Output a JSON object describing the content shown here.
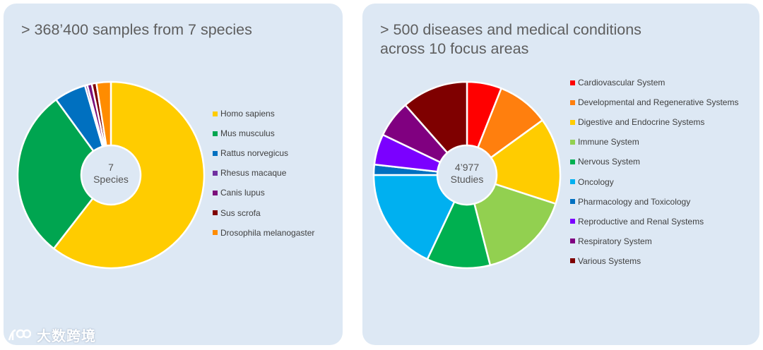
{
  "watermark": {
    "text": "大数跨境"
  },
  "chart_data": [
    {
      "type": "pie",
      "variant": "donut",
      "title": "> 368’400 samples from 7 species",
      "center_label": [
        "7",
        "Species"
      ],
      "categories": [
        "Homo sapiens",
        "Mus musculus",
        "Rattus norvegicus",
        "Rhesus macaque",
        "Canis lupus",
        "Sus scrofa",
        "Drosophila melanogaster"
      ],
      "values": [
        60.5,
        29.5,
        5.5,
        0.4,
        0.8,
        0.8,
        2.5
      ],
      "colors": [
        "#ffcc00",
        "#00a550",
        "#0070c0",
        "#7030a0",
        "#7b0f7b",
        "#7f0000",
        "#ff8c00"
      ],
      "start_angle_deg": 0,
      "legend_position": "right"
    },
    {
      "type": "pie",
      "variant": "donut",
      "title": "> 500 diseases and medical conditions across 10 focus areas",
      "title_lines": [
        "> 500 diseases and medical conditions",
        "across 10 focus areas"
      ],
      "center_label": [
        "4’977",
        "Studies"
      ],
      "categories": [
        "Cardiovascular System",
        "Developmental and Regenerative Systems",
        "Digestive and Endocrine Systems",
        "Immune System",
        "Nervous System",
        "Oncology",
        "Pharmacology and Toxicology",
        "Reproductive and Renal Systems",
        "Respiratory System",
        "Various Systems"
      ],
      "values": [
        6,
        9,
        15,
        16,
        11,
        18,
        1.8,
        5.3,
        6.4,
        11.5
      ],
      "colors": [
        "#ff0000",
        "#ff7f0e",
        "#ffcc00",
        "#92d050",
        "#00b050",
        "#00b0f0",
        "#0070c0",
        "#7b00ff",
        "#800080",
        "#7f0000"
      ],
      "start_angle_deg": 0,
      "legend_position": "right"
    }
  ]
}
